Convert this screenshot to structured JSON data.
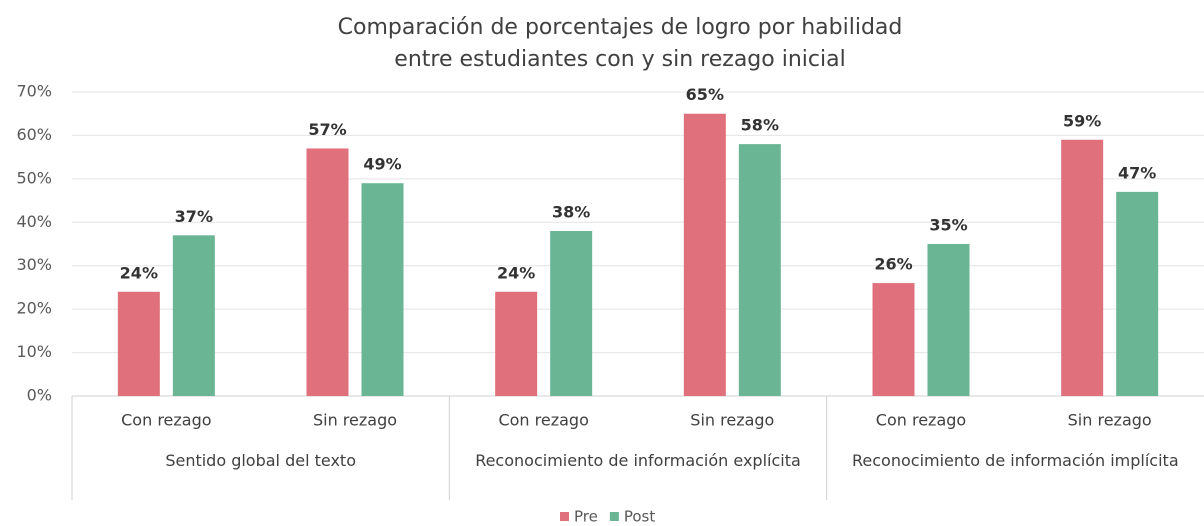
{
  "chart_data": {
    "type": "bar",
    "title": [
      "Comparación de porcentajes de logro por habilidad",
      "entre estudiantes con y sin rezago inicial"
    ],
    "categories": [
      "Con rezago",
      "Sin rezago",
      "Con rezago",
      "Sin rezago",
      "Con rezago",
      "Sin rezago"
    ],
    "groups": [
      "Sentido global del texto",
      "Reconocimiento de información explícita",
      "Reconocimiento de información implícita"
    ],
    "series": [
      {
        "name": "Pre",
        "color": "#e0707c",
        "values": [
          24,
          57,
          24,
          65,
          26,
          59
        ],
        "value_labels": [
          "24%",
          "57%",
          "24%",
          "65%",
          "26%",
          "59%"
        ]
      },
      {
        "name": "Post",
        "color": "#6ab593",
        "values": [
          37,
          49,
          38,
          58,
          35,
          47
        ],
        "value_labels": [
          "37%",
          "49%",
          "38%",
          "58%",
          "35%",
          "47%"
        ]
      }
    ],
    "ylim": [
      0,
      70
    ],
    "yticks": [
      {
        "value": 0,
        "label": "0%"
      },
      {
        "value": 10,
        "label": "10%"
      },
      {
        "value": 20,
        "label": "20%"
      },
      {
        "value": 30,
        "label": "30%"
      },
      {
        "value": 40,
        "label": "40%"
      },
      {
        "value": 50,
        "label": "50%"
      },
      {
        "value": 60,
        "label": "60%"
      },
      {
        "value": 70,
        "label": "70%"
      }
    ],
    "grid": true,
    "legend": "bottom"
  }
}
